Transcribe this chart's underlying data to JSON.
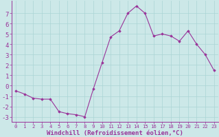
{
  "x": [
    0,
    1,
    2,
    3,
    4,
    5,
    6,
    7,
    8,
    9,
    10,
    11,
    12,
    13,
    14,
    15,
    16,
    17,
    18,
    19,
    20,
    21,
    22,
    23
  ],
  "y": [
    -0.5,
    -0.8,
    -1.2,
    -1.3,
    -1.3,
    -2.5,
    -2.7,
    -2.8,
    -3.0,
    -0.3,
    2.2,
    4.7,
    5.3,
    7.0,
    7.7,
    7.0,
    4.8,
    5.0,
    4.8,
    4.3,
    5.3,
    4.0,
    3.0,
    1.5
  ],
  "line_color": "#993399",
  "marker": "D",
  "marker_size": 1.8,
  "bg_color": "#cce8e8",
  "grid_color": "#aad4d4",
  "xlabel": "Windchill (Refroidissement éolien,°C)",
  "xlabel_fontsize": 6.5,
  "xtick_fontsize": 5.2,
  "ytick_fontsize": 6.5,
  "xlim": [
    -0.5,
    23.5
  ],
  "ylim": [
    -3.5,
    8.2
  ],
  "yticks": [
    -3,
    -2,
    -1,
    0,
    1,
    2,
    3,
    4,
    5,
    6,
    7
  ],
  "xtick_labels": [
    "0",
    "1",
    "2",
    "3",
    "4",
    "5",
    "6",
    "7",
    "8",
    "9",
    "10",
    "11",
    "12",
    "13",
    "14",
    "15",
    "16",
    "17",
    "18",
    "19",
    "20",
    "21",
    "22",
    "23"
  ]
}
